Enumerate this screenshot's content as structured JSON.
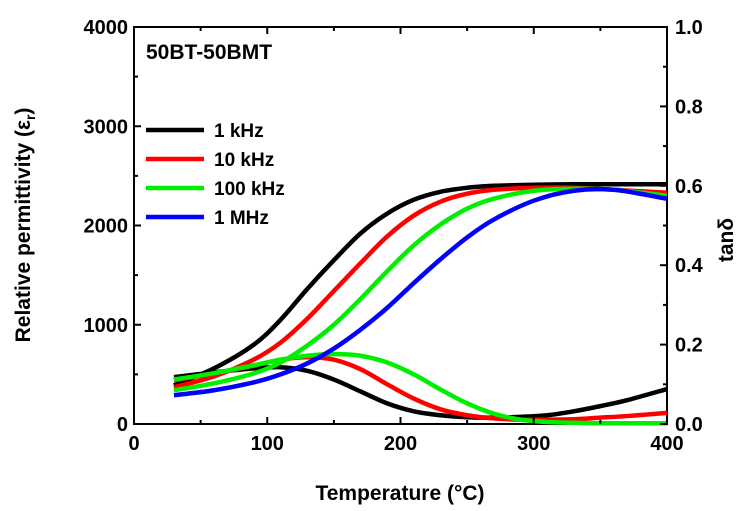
{
  "chart_data": {
    "type": "line",
    "sample_label": "50BT-50BMT",
    "x_axis": {
      "label": "Temperature (°C)",
      "range": [
        0,
        400
      ],
      "ticks": [
        0,
        100,
        200,
        300,
        400
      ],
      "tick_labels": [
        "0",
        "100",
        "200",
        "300",
        "400"
      ]
    },
    "y_axis_left": {
      "label_main": "Relative permittivity (ε",
      "label_sub": "r",
      "label_close": ")",
      "range": [
        0,
        4000
      ],
      "ticks": [
        0,
        1000,
        2000,
        3000,
        4000
      ],
      "tick_labels": [
        "0",
        "1000",
        "2000",
        "3000",
        "4000"
      ]
    },
    "y_axis_right": {
      "label": "tanδ",
      "range": [
        0,
        1.0
      ],
      "ticks": [
        0,
        0.2,
        0.4,
        0.6,
        0.8,
        1.0
      ],
      "tick_labels": [
        "0.0",
        "0.2",
        "0.4",
        "0.6",
        "0.8",
        "1.0"
      ]
    },
    "grid": false,
    "legend_position": "top-left",
    "series": [
      {
        "name": "1 kHz",
        "color": "#000000",
        "permittivity": {
          "x": [
            30,
            60,
            90,
            110,
            130,
            150,
            170,
            190,
            210,
            230,
            250,
            270,
            300,
            330,
            360,
            400
          ],
          "y": [
            390,
            560,
            800,
            1050,
            1360,
            1650,
            1920,
            2120,
            2260,
            2340,
            2380,
            2400,
            2410,
            2415,
            2415,
            2415
          ]
        },
        "tand": {
          "x": [
            30,
            60,
            90,
            110,
            130,
            150,
            170,
            190,
            210,
            230,
            250,
            270,
            290,
            310,
            330,
            350,
            370,
            400
          ],
          "y": [
            0.118,
            0.13,
            0.14,
            0.143,
            0.134,
            0.112,
            0.082,
            0.052,
            0.032,
            0.022,
            0.017,
            0.016,
            0.018,
            0.022,
            0.032,
            0.045,
            0.06,
            0.088
          ]
        }
      },
      {
        "name": "10 kHz",
        "color": "#ff0000",
        "permittivity": {
          "x": [
            30,
            60,
            90,
            110,
            130,
            150,
            170,
            190,
            210,
            230,
            250,
            270,
            300,
            330,
            360,
            400
          ],
          "y": [
            370,
            480,
            650,
            820,
            1060,
            1340,
            1620,
            1890,
            2100,
            2240,
            2320,
            2360,
            2380,
            2380,
            2360,
            2330
          ]
        },
        "tand": {
          "x": [
            30,
            60,
            90,
            110,
            130,
            150,
            170,
            190,
            210,
            230,
            250,
            270,
            290,
            310,
            330,
            350,
            370,
            400
          ],
          "y": [
            0.11,
            0.127,
            0.147,
            0.162,
            0.168,
            0.162,
            0.138,
            0.1,
            0.064,
            0.037,
            0.022,
            0.014,
            0.011,
            0.011,
            0.012,
            0.016,
            0.02,
            0.028
          ]
        }
      },
      {
        "name": "100 kHz",
        "color": "#00ee00",
        "permittivity": {
          "x": [
            30,
            60,
            90,
            110,
            130,
            150,
            170,
            190,
            210,
            230,
            250,
            270,
            300,
            330,
            360,
            400
          ],
          "y": [
            340,
            410,
            510,
            620,
            790,
            1000,
            1260,
            1540,
            1800,
            2010,
            2170,
            2270,
            2350,
            2370,
            2360,
            2300
          ]
        },
        "tand": {
          "x": [
            30,
            60,
            90,
            110,
            130,
            150,
            170,
            190,
            210,
            230,
            250,
            270,
            290,
            310,
            330,
            350,
            370,
            400
          ],
          "y": [
            0.112,
            0.128,
            0.148,
            0.162,
            0.172,
            0.176,
            0.172,
            0.155,
            0.125,
            0.087,
            0.052,
            0.026,
            0.011,
            0.005,
            0.003,
            0.002,
            0.002,
            0.002
          ]
        }
      },
      {
        "name": "1 MHz",
        "color": "#0000ff",
        "permittivity": {
          "x": [
            30,
            60,
            90,
            110,
            130,
            150,
            170,
            190,
            210,
            230,
            250,
            270,
            300,
            330,
            360,
            400
          ],
          "y": [
            290,
            340,
            420,
            500,
            610,
            760,
            950,
            1170,
            1420,
            1660,
            1880,
            2060,
            2250,
            2350,
            2360,
            2270
          ]
        },
        "tand": {
          "x": [],
          "y": []
        }
      }
    ]
  }
}
